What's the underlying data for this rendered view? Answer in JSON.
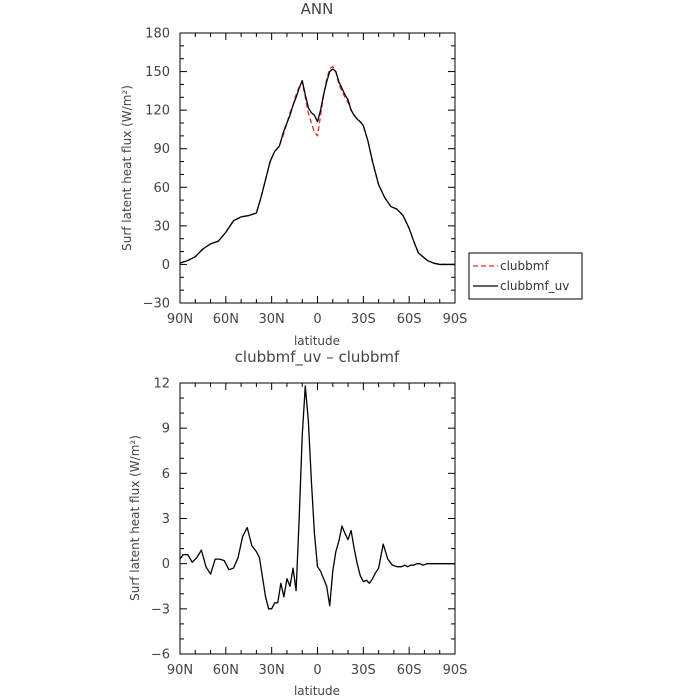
{
  "chart_data": [
    {
      "type": "line",
      "title": "ANN",
      "xlabel": "latitude",
      "ylabel": "Surf latent heat flux (W/m²)",
      "ylim": [
        -30,
        180
      ],
      "yticks": [
        -30,
        0,
        30,
        60,
        90,
        120,
        150,
        180
      ],
      "xlim": [
        90,
        -90
      ],
      "xticks": [
        90,
        60,
        30,
        0,
        -30,
        -60,
        -90
      ],
      "xtick_labels": [
        "90N",
        "60N",
        "30N",
        "0",
        "30S",
        "60S",
        "90S"
      ],
      "legend": {
        "placement": "outside-right"
      },
      "series": [
        {
          "name": "clubbmf",
          "color": "#e8282a",
          "dash": "dashed",
          "x": [
            90,
            85,
            80,
            75,
            70,
            65,
            60,
            55,
            50,
            45,
            40,
            37,
            34,
            31,
            28,
            25,
            22,
            20,
            18,
            16,
            14,
            12,
            10,
            8,
            6,
            4,
            2,
            0,
            -2,
            -4,
            -6,
            -8,
            -10,
            -12,
            -14,
            -16,
            -18,
            -20,
            -22,
            -24,
            -26,
            -28,
            -30,
            -33,
            -36,
            -40,
            -44,
            -48,
            -52,
            -56,
            -60,
            -63,
            -66,
            -69,
            -72,
            -76,
            -80,
            -84,
            -90
          ],
          "y": [
            1,
            3,
            6,
            12,
            16,
            18,
            25,
            34,
            37,
            38,
            40,
            52,
            66,
            80,
            88,
            92,
            102,
            110,
            118,
            124,
            132,
            138,
            142,
            130,
            118,
            110,
            103,
            100,
            116,
            132,
            144,
            152,
            154,
            150,
            140,
            135,
            130,
            126,
            120,
            116,
            113,
            111,
            108,
            96,
            80,
            62,
            52,
            45,
            43,
            38,
            28,
            18,
            9,
            6,
            3,
            1,
            0,
            0,
            0
          ]
        },
        {
          "name": "clubbmf_uv",
          "color": "#000000",
          "dash": "solid",
          "x": [
            90,
            85,
            80,
            75,
            70,
            65,
            60,
            55,
            50,
            45,
            40,
            37,
            34,
            31,
            28,
            25,
            22,
            20,
            18,
            16,
            14,
            12,
            10,
            8,
            6,
            4,
            2,
            0,
            -2,
            -4,
            -6,
            -8,
            -10,
            -12,
            -14,
            -16,
            -18,
            -20,
            -22,
            -24,
            -26,
            -28,
            -30,
            -33,
            -36,
            -40,
            -44,
            -48,
            -52,
            -56,
            -60,
            -63,
            -66,
            -69,
            -72,
            -76,
            -80,
            -84,
            -90
          ],
          "y": [
            1,
            3,
            6,
            12,
            16,
            18,
            25,
            34,
            37,
            38,
            40,
            52,
            66,
            80,
            88,
            92,
            104,
            110,
            116,
            124,
            130,
            137,
            143,
            132,
            122,
            118,
            116,
            111,
            120,
            132,
            142,
            150,
            152,
            150,
            142,
            137,
            132,
            128,
            120,
            116,
            113,
            111,
            108,
            96,
            80,
            62,
            52,
            45,
            43,
            38,
            28,
            18,
            9,
            6,
            3,
            1,
            0,
            0,
            0
          ]
        }
      ]
    },
    {
      "type": "line",
      "title": "clubbmf_uv – clubbmf",
      "xlabel": "latitude",
      "ylabel": "Surf latent heat flux (W/m²)",
      "ylim": [
        -6,
        12
      ],
      "yticks": [
        -6,
        -3,
        0,
        3,
        6,
        9,
        12
      ],
      "xlim": [
        90,
        -90
      ],
      "xticks": [
        90,
        60,
        30,
        0,
        -30,
        -60,
        -90
      ],
      "xtick_labels": [
        "90N",
        "60N",
        "30N",
        "0",
        "30S",
        "60S",
        "90S"
      ],
      "series": [
        {
          "color": "#000000",
          "dash": "solid",
          "x": [
            90,
            88,
            85,
            82,
            79,
            76,
            73,
            70,
            67,
            64,
            61,
            58,
            55,
            52,
            49,
            46,
            43,
            40,
            38,
            36,
            34,
            32,
            30,
            28,
            26,
            24,
            22,
            20,
            18,
            16,
            14,
            12,
            10,
            8,
            6,
            4,
            2,
            0,
            -2,
            -4,
            -6,
            -8,
            -10,
            -12,
            -14,
            -16,
            -18,
            -20,
            -22,
            -24,
            -26,
            -28,
            -30,
            -32,
            -34,
            -36,
            -38,
            -40,
            -43,
            -46,
            -49,
            -52,
            -55,
            -57,
            -59,
            -61,
            -63,
            -65,
            -67,
            -69,
            -72,
            -75,
            -78,
            -81,
            -84,
            -87,
            -90
          ],
          "y": [
            0.3,
            0.6,
            0.6,
            0.1,
            0.4,
            0.9,
            -0.2,
            -0.7,
            0.3,
            0.3,
            0.2,
            -0.4,
            -0.3,
            0.4,
            1.8,
            2.4,
            1.2,
            0.8,
            0.4,
            -0.9,
            -2.2,
            -3.0,
            -3.0,
            -2.6,
            -2.6,
            -1.3,
            -2.2,
            -1.0,
            -1.5,
            -0.3,
            -1.8,
            3.0,
            8.5,
            11.8,
            9.5,
            5.5,
            2.0,
            -0.2,
            -0.5,
            -1.0,
            -1.5,
            -2.8,
            -0.5,
            0.8,
            1.5,
            2.5,
            2.0,
            1.6,
            2.2,
            1.0,
            0.0,
            -0.8,
            -1.2,
            -1.1,
            -1.3,
            -1.0,
            -0.6,
            -0.3,
            1.3,
            0.3,
            -0.1,
            -0.2,
            -0.2,
            -0.1,
            -0.2,
            -0.1,
            -0.1,
            0.0,
            0.0,
            -0.1,
            0.0,
            0.0,
            0.0,
            0.0,
            0.0,
            0.0,
            0.0
          ]
        }
      ]
    }
  ]
}
